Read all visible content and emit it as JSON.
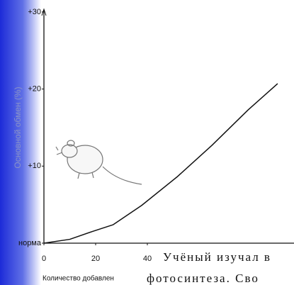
{
  "chart_data": {
    "type": "line",
    "y_label": "Основной обмен (%)",
    "x_label": "Количество добавлен",
    "x": [
      0,
      10,
      18.6,
      26.8,
      37.8,
      51.5,
      65,
      79,
      90.4
    ],
    "series": [
      {
        "color": "#111111",
        "values": [
          0,
          0.5,
          1.5,
          2.4,
          4.9,
          8.6,
          12.7,
          17.3,
          20.7
        ]
      }
    ],
    "xlim": [
      0,
      97
    ],
    "ylim": [
      0,
      31
    ],
    "xticks": [
      0,
      20,
      40
    ],
    "yticks": [
      {
        "value": 0,
        "label": "норма"
      },
      {
        "value": 10,
        "label": "+10"
      },
      {
        "value": 20,
        "label": "+20"
      },
      {
        "value": 30,
        "label": "+30"
      }
    ]
  },
  "overlay_text": [
    "Учёный изучал в",
    "фотосинтеза. Сво"
  ]
}
